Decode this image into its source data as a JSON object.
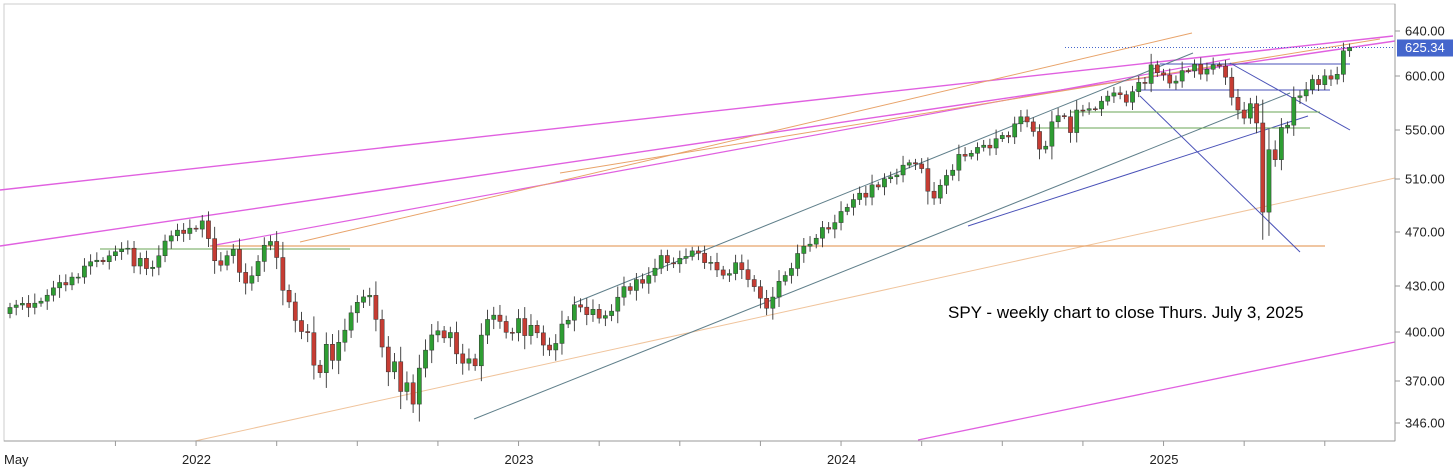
{
  "chart_data": {
    "type": "candlestick",
    "annotation": "SPY - weekly chart to close Thurs. July 3, 2025",
    "last_price": "625.34",
    "y_ticks": [
      346,
      370,
      400,
      430,
      470,
      510,
      550,
      600,
      640
    ],
    "y_tick_labels": [
      "346.00",
      "370.00",
      "400.00",
      "430.00",
      "470.00",
      "510.00",
      "550.00",
      "600.00",
      "640.00"
    ],
    "x_labels": [
      {
        "t": 0,
        "label": "May"
      },
      {
        "t": 30,
        "label": "2022"
      },
      {
        "t": 82,
        "label": "2023"
      },
      {
        "t": 134,
        "label": "2024"
      },
      {
        "t": 186,
        "label": "2025"
      }
    ],
    "x_minor_ticks": [
      17,
      30,
      43,
      56,
      69,
      82,
      95,
      108,
      121,
      134,
      147,
      160,
      173,
      186,
      199,
      212
    ],
    "x_range": [
      0,
      219
    ],
    "y_range": [
      340,
      650
    ],
    "colors": {
      "up": "#2e9e33",
      "down": "#c63c33",
      "wick": "#333333",
      "magenta": "#e060e0",
      "orange": "#e8a36a",
      "orange_light": "#f0c49c",
      "slate": "#5f7f8a",
      "blue": "#4a52b8",
      "green": "#6aa654",
      "last_bg": "#4466cc",
      "grid": "#e6e6e6"
    },
    "closes": [
      416.0,
      417.6,
      418.7,
      416.0,
      418.8,
      420.1,
      424.0,
      428.8,
      432.6,
      430.8,
      436.6,
      436.6,
      444.8,
      448.0,
      449.1,
      448.0,
      452.4,
      455.4,
      457.3,
      458.0,
      444.8,
      450.5,
      442.9,
      443.9,
      452.4,
      463.3,
      467.2,
      471.4,
      468.9,
      472.9,
      472.2,
      478.4,
      465.1,
      448.7,
      445.4,
      452.5,
      457.1,
      440.1,
      432.1,
      437.6,
      448.2,
      460.2,
      463.0,
      451.1,
      427.2,
      419.6,
      407.5,
      400.3,
      399.6,
      379.7,
      375.1,
      392.5,
      382.6,
      393.7,
      401.2,
      412.5,
      419.4,
      422.9,
      423.9,
      408.2,
      390.8,
      375.6,
      381.8,
      364.0,
      369.0,
      356.8,
      377.9,
      388.9,
      398.2,
      400.8,
      396.4,
      399.7,
      386.6,
      380.9,
      383.6,
      379.3,
      398.1,
      408.2,
      411.0,
      406.9,
      399.8,
      399.5,
      408.8,
      397.8,
      404.4,
      399.5,
      392.0,
      389.0,
      393.0,
      405.2,
      407.7,
      417.8,
      416.2,
      411.3,
      414.8,
      409.0,
      410.7,
      413.6,
      422.7,
      429.6,
      427.1,
      434.8,
      432.0,
      437.8,
      443.2,
      452.6,
      447.2,
      446.4,
      450.5,
      451.9,
      456.0,
      454.3,
      447.3,
      447.5,
      441.9,
      438.0,
      439.2,
      447.3,
      442.1,
      434.8,
      429.6,
      422.0,
      415.5,
      422.8,
      433.5,
      437.8,
      443.0,
      454.1,
      459.5,
      461.0,
      465.4,
      473.4,
      472.2,
      477.1,
      485.5,
      488.6,
      494.5,
      499.3,
      496.3,
      505.6,
      504.0,
      510.2,
      511.8,
      513.3,
      521.3,
      523.3,
      522.3,
      518.5,
      500.8,
      495.6,
      505.3,
      512.9,
      517.2,
      530.1,
      528.6,
      531.0,
      535.8,
      537.6,
      535.3,
      542.9,
      545.6,
      544.3,
      555.7,
      562.2,
      557.5,
      548.8,
      534.4,
      536.8,
      557.6,
      563.3,
      562.3,
      547.9,
      568.5,
      568.3,
      569.7,
      569.5,
      576.7,
      581.4,
      584.4,
      582.7,
      575.7,
      585.5,
      594.1,
      593.1,
      609.9,
      602.9,
      600.9,
      593.4,
      595.3,
      604.8,
      604.5,
      610.4,
      601.7,
      606.0,
      609.9,
      608.8,
      598.9,
      580.3,
      568.5,
      561.0,
      574.4,
      556.5,
      485.0,
      533.9,
      525.8,
      552.4,
      554.5,
      580.1,
      581.6,
      587.4,
      596.8,
      592.0,
      600.2,
      597.1,
      601.5,
      622.4,
      625.3
    ],
    "open_first": 412.0
  }
}
